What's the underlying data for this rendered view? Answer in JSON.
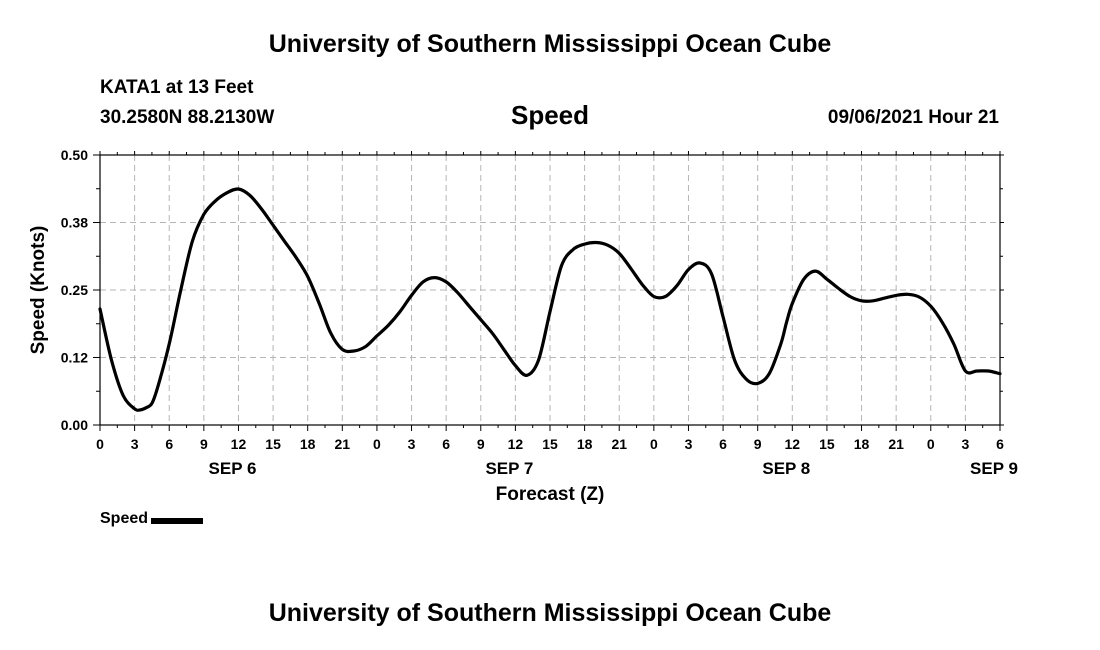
{
  "header": {
    "title": "University of Southern Mississippi Ocean Cube",
    "station": "KATA1 at 13 Feet",
    "coords": "30.2580N  88.2130W",
    "datetime": "09/06/2021 Hour 21"
  },
  "footer": {
    "title": "University of Southern Mississippi Ocean Cube"
  },
  "chart_data": {
    "type": "line",
    "title": "Speed",
    "xlabel": "Forecast (Z)",
    "ylabel": "Speed (Knots)",
    "ylim": [
      0,
      0.5
    ],
    "xlim": [
      0,
      78
    ],
    "y_ticks": [
      0,
      0.125,
      0.25,
      0.375,
      0.5
    ],
    "y_tick_labels": [
      "0.00",
      "0.12",
      "0.25",
      "0.38",
      "0.50"
    ],
    "x_ticks": [
      0,
      3,
      6,
      9,
      12,
      15,
      18,
      21,
      24,
      27,
      30,
      33,
      36,
      39,
      42,
      45,
      48,
      51,
      54,
      57,
      60,
      63,
      66,
      69,
      72,
      75,
      78
    ],
    "x_tick_labels": [
      "0",
      "3",
      "6",
      "9",
      "12",
      "15",
      "18",
      "21",
      "0",
      "3",
      "6",
      "9",
      "12",
      "15",
      "18",
      "21",
      "0",
      "3",
      "6",
      "9",
      "12",
      "15",
      "18",
      "21",
      "0",
      "3",
      "6"
    ],
    "date_labels": [
      {
        "label": "SEP 6",
        "x": 12
      },
      {
        "label": "SEP 7",
        "x": 36
      },
      {
        "label": "SEP 8",
        "x": 60
      },
      {
        "label": "SEP 9",
        "x": 78
      }
    ],
    "grid": true,
    "legend": "bottom-left",
    "series": [
      {
        "name": "Speed",
        "color": "#000000",
        "x": [
          0,
          1,
          2,
          3,
          3.5,
          4,
          4.5,
          5,
          6,
          7,
          8,
          9,
          10,
          11,
          12,
          13,
          14,
          15,
          16,
          17,
          18,
          19,
          20,
          21,
          22,
          23,
          24,
          25,
          26,
          27,
          28,
          29,
          30,
          31,
          32,
          33,
          34,
          35,
          36,
          37,
          38,
          39,
          40,
          41,
          42,
          43,
          44,
          45,
          46,
          47,
          48,
          49,
          50,
          51,
          52,
          53,
          54,
          55,
          56,
          57,
          58,
          59,
          59.5,
          60,
          61,
          62,
          63,
          64,
          65,
          66,
          67,
          68,
          69,
          70,
          71,
          72,
          73,
          74,
          75,
          76,
          77,
          78
        ],
        "y": [
          0.215,
          0.12,
          0.055,
          0.03,
          0.028,
          0.032,
          0.04,
          0.07,
          0.15,
          0.25,
          0.34,
          0.39,
          0.415,
          0.43,
          0.437,
          0.425,
          0.4,
          0.37,
          0.34,
          0.31,
          0.275,
          0.225,
          0.17,
          0.14,
          0.137,
          0.145,
          0.165,
          0.185,
          0.21,
          0.24,
          0.265,
          0.273,
          0.265,
          0.245,
          0.22,
          0.195,
          0.17,
          0.14,
          0.11,
          0.092,
          0.12,
          0.21,
          0.295,
          0.325,
          0.335,
          0.338,
          0.333,
          0.318,
          0.29,
          0.26,
          0.238,
          0.238,
          0.258,
          0.288,
          0.3,
          0.28,
          0.2,
          0.12,
          0.085,
          0.077,
          0.095,
          0.15,
          0.19,
          0.225,
          0.27,
          0.285,
          0.27,
          0.253,
          0.238,
          0.23,
          0.23,
          0.235,
          0.24,
          0.242,
          0.237,
          0.22,
          0.19,
          0.15,
          0.1,
          0.1,
          0.1,
          0.095
        ]
      }
    ]
  }
}
